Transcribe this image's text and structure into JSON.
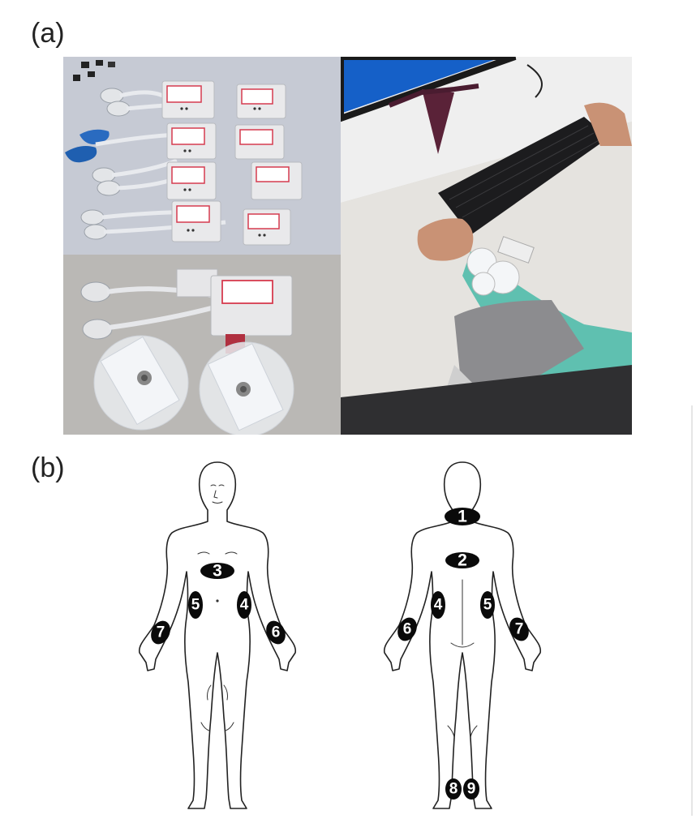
{
  "panels": {
    "a": {
      "label": "(a)"
    },
    "b": {
      "label": "(b)"
    }
  },
  "photos": {
    "sensors_top": {
      "icon": "sensor-units-photo"
    },
    "sensor_single": {
      "icon": "sensor-electrode-photo"
    },
    "participant": {
      "icon": "participant-keyboard-photo"
    }
  },
  "front_markers": [
    {
      "id": "3",
      "label": "3"
    },
    {
      "id": "5",
      "label": "5"
    },
    {
      "id": "4",
      "label": "4"
    },
    {
      "id": "7",
      "label": "7"
    },
    {
      "id": "6",
      "label": "6"
    }
  ],
  "back_markers": [
    {
      "id": "1",
      "label": "1"
    },
    {
      "id": "2",
      "label": "2"
    },
    {
      "id": "4",
      "label": "4"
    },
    {
      "id": "5",
      "label": "5"
    },
    {
      "id": "6",
      "label": "6"
    },
    {
      "id": "7",
      "label": "7"
    },
    {
      "id": "8",
      "label": "8"
    },
    {
      "id": "9",
      "label": "9"
    }
  ],
  "colors": {
    "marker": "#0a0a0a",
    "marker_text": "#ffffff",
    "outline": "#222222"
  }
}
